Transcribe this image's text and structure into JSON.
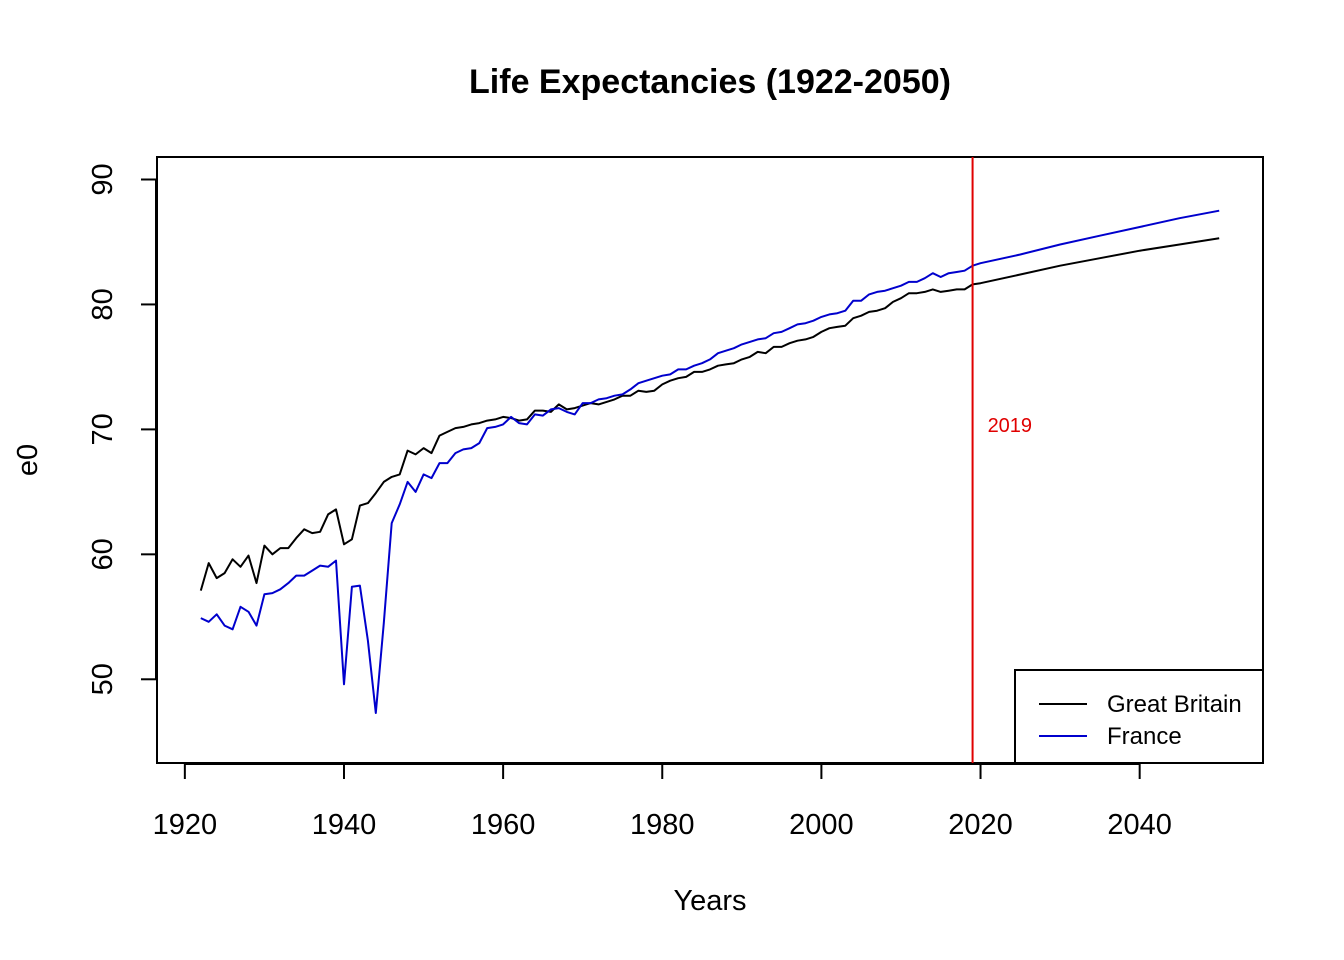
{
  "chart_data": {
    "type": "line",
    "title": "Life Expectancies (1922-2050)",
    "xlabel": "Years",
    "ylabel": "e0",
    "xlim": [
      1916.5,
      2055.5
    ],
    "ylim": [
      43.3,
      91.8
    ],
    "xticks": [
      1920,
      1940,
      1960,
      1980,
      2000,
      2020,
      2040
    ],
    "yticks": [
      50,
      60,
      70,
      80,
      90
    ],
    "grid": false,
    "legend_position": "bottom-right",
    "colors": {
      "Great Britain": "#000000",
      "France": "#0000cd",
      "vline": "#e00000"
    },
    "vline": {
      "x": 2019,
      "label": "2019",
      "label_y": 69.8
    },
    "legend": [
      "Great Britain",
      "France"
    ],
    "series": [
      {
        "name": "Great Britain",
        "color": "#000000",
        "x": [
          1922,
          1923,
          1924,
          1925,
          1926,
          1927,
          1928,
          1929,
          1930,
          1931,
          1932,
          1933,
          1934,
          1935,
          1936,
          1937,
          1938,
          1939,
          1940,
          1941,
          1942,
          1943,
          1944,
          1945,
          1946,
          1947,
          1948,
          1949,
          1950,
          1951,
          1952,
          1953,
          1954,
          1955,
          1956,
          1957,
          1958,
          1959,
          1960,
          1961,
          1962,
          1963,
          1964,
          1965,
          1966,
          1967,
          1968,
          1969,
          1970,
          1971,
          1972,
          1973,
          1974,
          1975,
          1976,
          1977,
          1978,
          1979,
          1980,
          1981,
          1982,
          1983,
          1984,
          1985,
          1986,
          1987,
          1988,
          1989,
          1990,
          1991,
          1992,
          1993,
          1994,
          1995,
          1996,
          1997,
          1998,
          1999,
          2000,
          2001,
          2002,
          2003,
          2004,
          2005,
          2006,
          2007,
          2008,
          2009,
          2010,
          2011,
          2012,
          2013,
          2014,
          2015,
          2016,
          2017,
          2018,
          2019,
          2020,
          2025,
          2030,
          2035,
          2040,
          2045,
          2050
        ],
        "values": [
          57.1,
          59.3,
          58.1,
          58.5,
          59.6,
          59.0,
          59.9,
          57.7,
          60.7,
          60.0,
          60.5,
          60.5,
          61.3,
          62.0,
          61.7,
          61.8,
          63.2,
          63.6,
          60.8,
          61.2,
          63.9,
          64.1,
          64.9,
          65.8,
          66.2,
          66.4,
          68.3,
          68.0,
          68.5,
          68.1,
          69.5,
          69.8,
          70.1,
          70.2,
          70.4,
          70.5,
          70.7,
          70.8,
          71.0,
          70.9,
          70.7,
          70.8,
          71.5,
          71.5,
          71.4,
          72.0,
          71.6,
          71.7,
          71.9,
          72.1,
          72.0,
          72.2,
          72.4,
          72.7,
          72.7,
          73.1,
          73.0,
          73.1,
          73.6,
          73.9,
          74.1,
          74.2,
          74.6,
          74.6,
          74.8,
          75.1,
          75.2,
          75.3,
          75.6,
          75.8,
          76.2,
          76.1,
          76.6,
          76.6,
          76.9,
          77.1,
          77.2,
          77.4,
          77.8,
          78.1,
          78.2,
          78.3,
          78.9,
          79.1,
          79.4,
          79.5,
          79.7,
          80.2,
          80.5,
          80.9,
          80.9,
          81.0,
          81.2,
          81.0,
          81.1,
          81.2,
          81.2,
          81.6,
          81.7,
          82.4,
          83.1,
          83.7,
          84.3,
          84.8,
          85.3
        ]
      },
      {
        "name": "France",
        "color": "#0000cd",
        "x": [
          1922,
          1923,
          1924,
          1925,
          1926,
          1927,
          1928,
          1929,
          1930,
          1931,
          1932,
          1933,
          1934,
          1935,
          1936,
          1937,
          1938,
          1939,
          1940,
          1941,
          1942,
          1943,
          1944,
          1945,
          1946,
          1947,
          1948,
          1949,
          1950,
          1951,
          1952,
          1953,
          1954,
          1955,
          1956,
          1957,
          1958,
          1959,
          1960,
          1961,
          1962,
          1963,
          1964,
          1965,
          1966,
          1967,
          1968,
          1969,
          1970,
          1971,
          1972,
          1973,
          1974,
          1975,
          1976,
          1977,
          1978,
          1979,
          1980,
          1981,
          1982,
          1983,
          1984,
          1985,
          1986,
          1987,
          1988,
          1989,
          1990,
          1991,
          1992,
          1993,
          1994,
          1995,
          1996,
          1997,
          1998,
          1999,
          2000,
          2001,
          2002,
          2003,
          2004,
          2005,
          2006,
          2007,
          2008,
          2009,
          2010,
          2011,
          2012,
          2013,
          2014,
          2015,
          2016,
          2017,
          2018,
          2019,
          2020,
          2025,
          2030,
          2035,
          2040,
          2045,
          2050
        ],
        "values": [
          54.9,
          54.6,
          55.2,
          54.3,
          54.0,
          55.8,
          55.4,
          54.3,
          56.8,
          56.9,
          57.2,
          57.7,
          58.3,
          58.3,
          58.7,
          59.1,
          59.0,
          59.5,
          49.6,
          57.4,
          57.5,
          53.1,
          47.3,
          54.5,
          62.5,
          64.0,
          65.8,
          65.0,
          66.4,
          66.1,
          67.3,
          67.3,
          68.1,
          68.4,
          68.5,
          68.9,
          70.1,
          70.2,
          70.4,
          71.0,
          70.5,
          70.4,
          71.2,
          71.1,
          71.6,
          71.7,
          71.4,
          71.2,
          72.1,
          72.1,
          72.4,
          72.5,
          72.7,
          72.8,
          73.2,
          73.7,
          73.9,
          74.1,
          74.3,
          74.4,
          74.8,
          74.8,
          75.1,
          75.3,
          75.6,
          76.1,
          76.3,
          76.5,
          76.8,
          77.0,
          77.2,
          77.3,
          77.7,
          77.8,
          78.1,
          78.4,
          78.5,
          78.7,
          79.0,
          79.2,
          79.3,
          79.5,
          80.3,
          80.3,
          80.8,
          81.0,
          81.1,
          81.3,
          81.5,
          81.8,
          81.8,
          82.1,
          82.5,
          82.2,
          82.5,
          82.6,
          82.7,
          83.1,
          83.3,
          84.0,
          84.8,
          85.5,
          86.2,
          86.9,
          87.5
        ]
      }
    ]
  }
}
